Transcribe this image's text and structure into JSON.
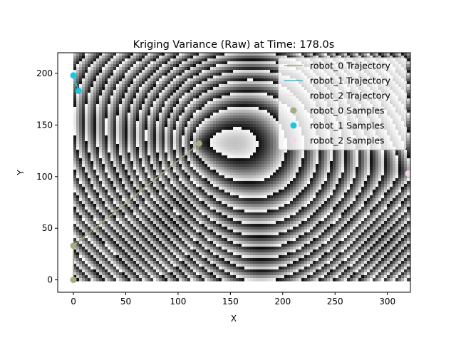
{
  "chart_data": {
    "type": "line",
    "title": "Kriging Variance (Raw) at Time: 178.0s",
    "xlabel": "X",
    "ylabel": "Y",
    "xlim": [
      -15,
      322
    ],
    "ylim": [
      -12,
      220
    ],
    "xticks": [
      0,
      50,
      100,
      150,
      200,
      250,
      300
    ],
    "yticks": [
      0,
      50,
      100,
      150,
      200
    ],
    "heatmap": {
      "x_range": [
        0,
        320
      ],
      "y_range": [
        0,
        220
      ],
      "colormap": "gray",
      "description": "wrapped variance field shown as banded grayscale rings"
    },
    "legend_position": "top-right",
    "series": [
      {
        "name": "robot_0 Trajectory",
        "kind": "line",
        "color": "#a7ab82",
        "x": [
          0,
          0,
          120
        ],
        "y": [
          0,
          33,
          132
        ]
      },
      {
        "name": "robot_1 Trajectory",
        "kind": "line",
        "color": "#1ec5df",
        "x": [
          0,
          5
        ],
        "y": [
          198,
          183
        ]
      },
      {
        "name": "robot_2 Trajectory",
        "kind": "line",
        "color": "#f3d8ec",
        "x": [
          320
        ],
        "y": [
          103
        ]
      },
      {
        "name": "robot_0 Samples",
        "kind": "scatter",
        "color": "#a7ab82",
        "x": [
          0,
          0,
          120
        ],
        "y": [
          0,
          33,
          132
        ]
      },
      {
        "name": "robot_1 Samples",
        "kind": "scatter",
        "color": "#1ec5df",
        "x": [
          0,
          5
        ],
        "y": [
          198,
          183
        ]
      },
      {
        "name": "robot_2 Samples",
        "kind": "scatter",
        "color": "#f3d8ec",
        "x": [
          320
        ],
        "y": [
          103
        ]
      }
    ]
  }
}
